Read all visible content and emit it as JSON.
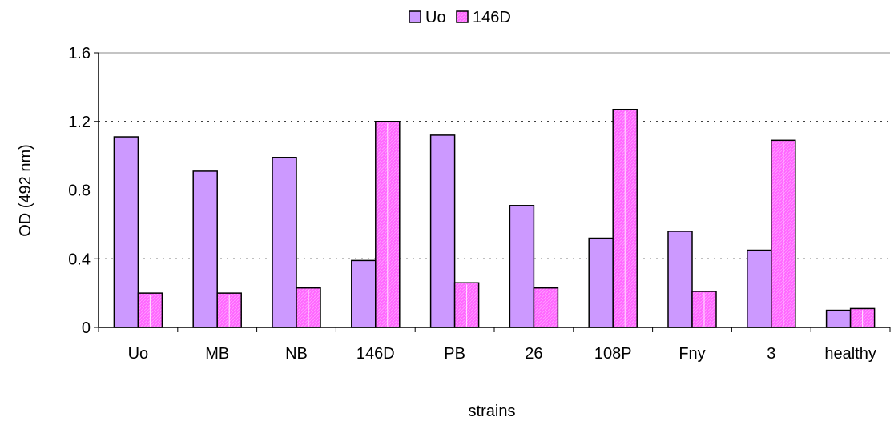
{
  "chart_data": {
    "type": "bar",
    "xlabel": "strains",
    "ylabel": "OD (492 nm)",
    "categories": [
      "Uo",
      "MB",
      "NB",
      "146D",
      "PB",
      "26",
      "108P",
      "Fny",
      "3",
      "healthy"
    ],
    "series": [
      {
        "name": "Uo",
        "color": "#cc99ff",
        "values": [
          1.11,
          0.91,
          0.99,
          0.39,
          1.12,
          0.71,
          0.52,
          0.56,
          0.45,
          0.1
        ]
      },
      {
        "name": "146D",
        "color": "#ff66ff",
        "values": [
          0.2,
          0.2,
          0.23,
          1.2,
          0.26,
          0.23,
          1.27,
          0.21,
          1.09,
          0.11
        ]
      }
    ],
    "ylim": [
      0,
      1.6
    ],
    "yticks": [
      "0",
      "0.4",
      "0.8",
      "1.2",
      "1.6"
    ],
    "grid": "y-dotted",
    "legend_position": "top-center"
  }
}
